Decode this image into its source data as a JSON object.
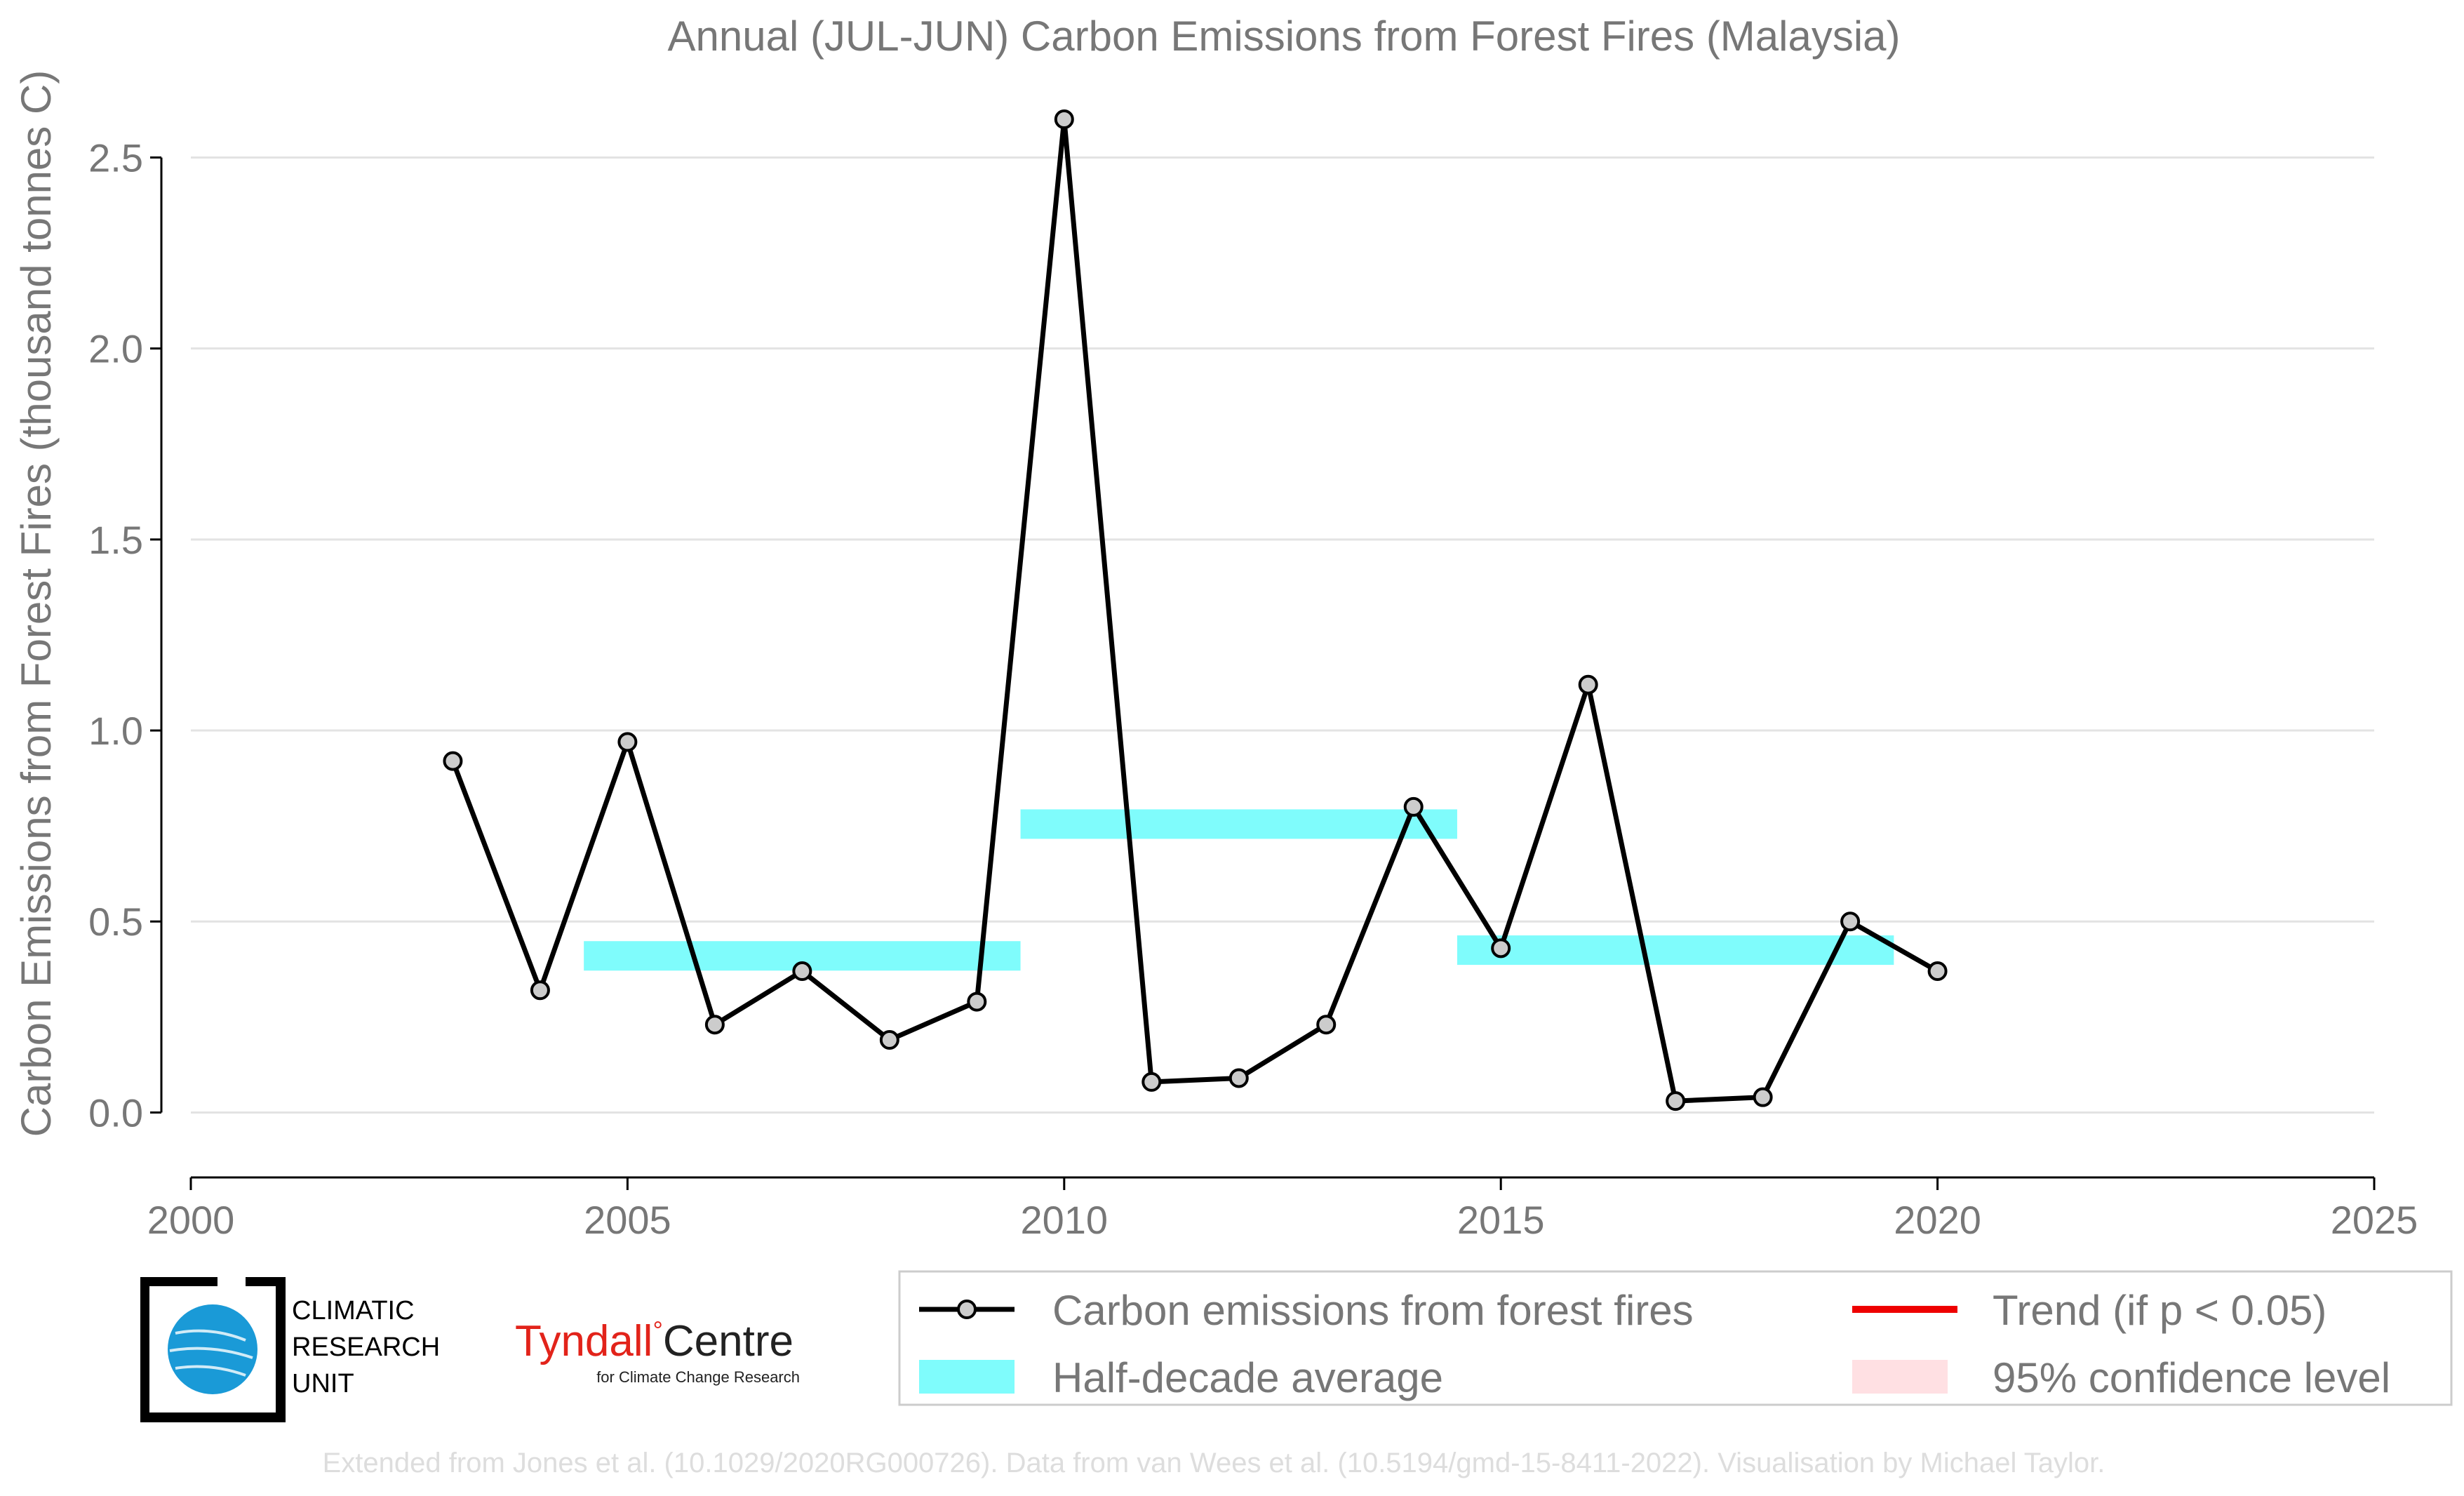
{
  "chart_data": {
    "type": "line",
    "title": "Annual (JUL-JUN) Carbon Emissions from Forest Fires (Malaysia)",
    "xlabel": "",
    "ylabel": "Carbon Emissions from Forest Fires (thousand tonnes C)",
    "xlim": [
      2000,
      2025
    ],
    "ylim": [
      -0.17,
      2.6
    ],
    "x_ticks": [
      2000,
      2005,
      2010,
      2015,
      2020,
      2025
    ],
    "x_tick_labels": [
      "2000",
      "2005",
      "2010",
      "2015",
      "2020",
      "2025"
    ],
    "y_ticks": [
      0,
      0.5,
      1.0,
      1.5,
      2.0,
      2.5
    ],
    "y_tick_labels": [
      "0.0",
      "0.5",
      "1.0",
      "1.5",
      "2.0",
      "2.5"
    ],
    "grid": "horizontal",
    "series": [
      {
        "name": "Carbon emissions from forest fires",
        "color": "#000000",
        "marker_fill": "#cccccc",
        "x": [
          2003,
          2004,
          2005,
          2006,
          2007,
          2008,
          2009,
          2010,
          2011,
          2012,
          2013,
          2014,
          2015,
          2016,
          2017,
          2018,
          2019,
          2020
        ],
        "y": [
          0.92,
          0.32,
          0.97,
          0.23,
          0.37,
          0.19,
          0.29,
          2.6,
          0.08,
          0.09,
          0.23,
          0.8,
          0.43,
          1.12,
          0.03,
          0.04,
          0.5,
          0.37
        ]
      }
    ],
    "half_decade_average": {
      "name": "Half-decade average",
      "color": "#7ffcfc",
      "segments": [
        {
          "x0": 2004.5,
          "x1": 2009.5,
          "y": 0.41
        },
        {
          "x0": 2009.5,
          "x1": 2014.5,
          "y": 0.755
        },
        {
          "x0": 2014.5,
          "x1": 2019.5,
          "y": 0.425
        }
      ]
    },
    "legend": {
      "placement": "bottom-right",
      "entries": [
        {
          "label": "Carbon emissions from forest fires",
          "kind": "line-marker",
          "color": "#000000"
        },
        {
          "label": "Trend (if p < 0.05)",
          "kind": "line",
          "color": "#ee0000"
        },
        {
          "label": "Half-decade average",
          "kind": "patch",
          "color": "#7ffcfc"
        },
        {
          "label": "95% confidence level",
          "kind": "patch",
          "color": "#ffe0e3"
        }
      ]
    },
    "footnote": "Extended from Jones et al. (10.1029/2020RG000726). Data from van Wees et al. (10.5194/gmd-15-8411-2022). Visualisation by Michael Taylor."
  },
  "logos": {
    "cru": {
      "lines": [
        "CLIMATIC",
        "RESEARCH",
        "UNIT"
      ],
      "color": "#1a9ad7"
    },
    "tyndall": {
      "name": "Tyndall",
      "degree": "°",
      "centre": "Centre",
      "sub": "for Climate Change Research",
      "color": "#e2231a"
    }
  }
}
